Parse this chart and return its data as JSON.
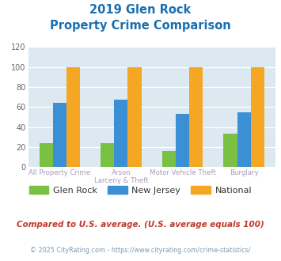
{
  "title_line1": "2019 Glen Rock",
  "title_line2": "Property Crime Comparison",
  "title_color": "#1a6faf",
  "cat_labels_row1": [
    "All Property Crime",
    "Arson",
    "Motor Vehicle Theft",
    "Burglary"
  ],
  "cat_labels_row2": [
    "",
    "Larceny & Theft",
    "",
    ""
  ],
  "glen_rock": [
    24,
    24,
    16,
    33
  ],
  "new_jersey": [
    64,
    67,
    53,
    55
  ],
  "national": [
    100,
    100,
    100,
    100
  ],
  "glen_rock_color": "#7ac143",
  "new_jersey_color": "#3b8fd4",
  "national_color": "#f5a623",
  "ylim": [
    0,
    120
  ],
  "yticks": [
    0,
    20,
    40,
    60,
    80,
    100,
    120
  ],
  "bg_color": "#dce9f0",
  "fig_bg": "#ffffff",
  "legend_labels": [
    "Glen Rock",
    "New Jersey",
    "National"
  ],
  "footnote1": "Compared to U.S. average. (U.S. average equals 100)",
  "footnote2": "© 2025 CityRating.com - https://www.cityrating.com/crime-statistics/",
  "footnote1_color": "#c0392b",
  "footnote2_color": "#7a9ab5"
}
